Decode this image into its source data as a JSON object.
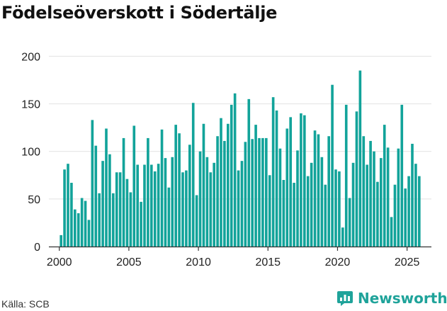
{
  "chart_data": {
    "type": "bar",
    "title": "Födelseöverskott i Södertälje",
    "source": "Källa: SCB",
    "brand": "Newsworthy",
    "xlabel": "",
    "ylabel": "",
    "ylim": [
      0,
      210
    ],
    "yticks": [
      0,
      50,
      100,
      150,
      200
    ],
    "xticks": [
      2000,
      2005,
      2010,
      2015,
      2020,
      2025
    ],
    "x_range": [
      1999.25,
      2026.75
    ],
    "series_name": "Födelseöverskott",
    "bar_color": "#12a39a",
    "grid_color": "#e2e2e2",
    "x": [
      2000.125,
      2000.375,
      2000.625,
      2000.875,
      2001.125,
      2001.375,
      2001.625,
      2001.875,
      2002.125,
      2002.375,
      2002.625,
      2002.875,
      2003.125,
      2003.375,
      2003.625,
      2003.875,
      2004.125,
      2004.375,
      2004.625,
      2004.875,
      2005.125,
      2005.375,
      2005.625,
      2005.875,
      2006.125,
      2006.375,
      2006.625,
      2006.875,
      2007.125,
      2007.375,
      2007.625,
      2007.875,
      2008.125,
      2008.375,
      2008.625,
      2008.875,
      2009.125,
      2009.375,
      2009.625,
      2009.875,
      2010.125,
      2010.375,
      2010.625,
      2010.875,
      2011.125,
      2011.375,
      2011.625,
      2011.875,
      2012.125,
      2012.375,
      2012.625,
      2012.875,
      2013.125,
      2013.375,
      2013.625,
      2013.875,
      2014.125,
      2014.375,
      2014.625,
      2014.875,
      2015.125,
      2015.375,
      2015.625,
      2015.875,
      2016.125,
      2016.375,
      2016.625,
      2016.875,
      2017.125,
      2017.375,
      2017.625,
      2017.875,
      2018.125,
      2018.375,
      2018.625,
      2018.875,
      2019.125,
      2019.375,
      2019.625,
      2019.875,
      2020.125,
      2020.375,
      2020.625,
      2020.875,
      2021.125,
      2021.375,
      2021.625,
      2021.875,
      2022.125,
      2022.375,
      2022.625,
      2022.875,
      2023.125,
      2023.375,
      2023.625,
      2023.875,
      2024.125,
      2024.375,
      2024.625,
      2024.875,
      2025.125,
      2025.375,
      2025.625,
      2025.875
    ],
    "values": [
      12,
      81,
      87,
      67,
      39,
      35,
      51,
      48,
      28,
      133,
      106,
      56,
      90,
      124,
      97,
      56,
      78,
      78,
      114,
      71,
      57,
      127,
      86,
      47,
      86,
      114,
      86,
      79,
      87,
      123,
      93,
      62,
      94,
      128,
      119,
      78,
      80,
      107,
      151,
      54,
      100,
      129,
      94,
      78,
      88,
      116,
      135,
      111,
      129,
      149,
      161,
      80,
      90,
      110,
      155,
      113,
      128,
      114,
      114,
      114,
      75,
      157,
      143,
      103,
      70,
      124,
      136,
      67,
      101,
      140,
      138,
      74,
      88,
      122,
      118,
      94,
      65,
      116,
      170,
      81,
      79,
      20,
      149,
      51,
      88,
      142,
      185,
      116,
      86,
      111,
      100,
      68,
      93,
      128,
      104,
      31,
      65,
      103,
      149,
      61,
      74,
      108,
      87,
      74
    ]
  }
}
